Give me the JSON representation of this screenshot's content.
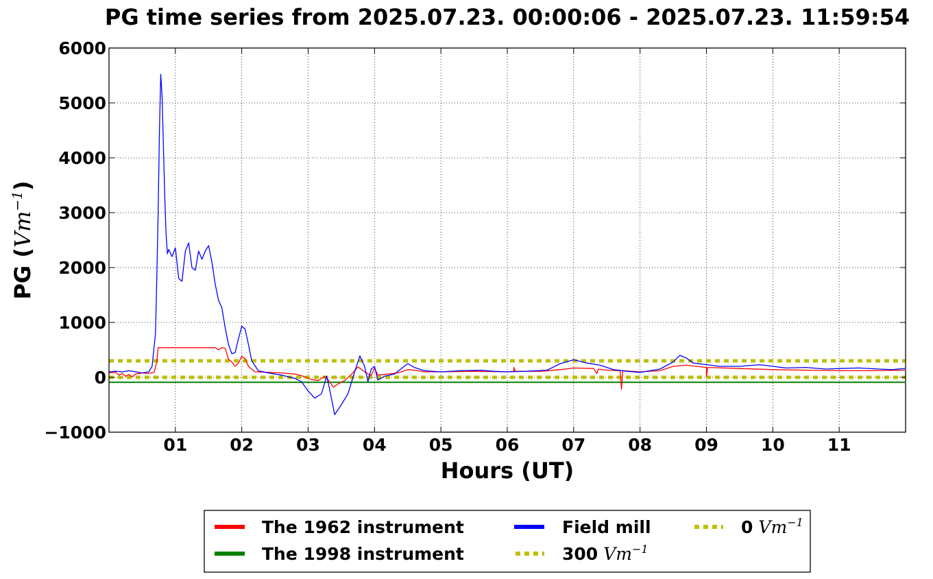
{
  "chart_data": {
    "type": "line",
    "title": "PG time series from 2025.07.23. 00:00:06 - 2025.07.23. 11:59:54",
    "xlabel": "Hours (UT)",
    "ylabel": "PG (",
    "ylabel_unit": "Vm",
    "ylabel_unit_exp": "−1",
    "ylabel_close": ")",
    "xlim": [
      0,
      12
    ],
    "ylim": [
      -1000,
      6000
    ],
    "grid": true,
    "x_ticks": [
      {
        "v": 1,
        "label": "01"
      },
      {
        "v": 2,
        "label": "02"
      },
      {
        "v": 3,
        "label": "03"
      },
      {
        "v": 4,
        "label": "04"
      },
      {
        "v": 5,
        "label": "05"
      },
      {
        "v": 6,
        "label": "06"
      },
      {
        "v": 7,
        "label": "07"
      },
      {
        "v": 8,
        "label": "08"
      },
      {
        "v": 9,
        "label": "09"
      },
      {
        "v": 10,
        "label": "10"
      },
      {
        "v": 11,
        "label": "11"
      }
    ],
    "y_ticks": [
      {
        "v": -1000,
        "label": "−1000"
      },
      {
        "v": 0,
        "label": "0"
      },
      {
        "v": 1000,
        "label": "1000"
      },
      {
        "v": 2000,
        "label": "2000"
      },
      {
        "v": 3000,
        "label": "3000"
      },
      {
        "v": 4000,
        "label": "4000"
      },
      {
        "v": 5000,
        "label": "5000"
      },
      {
        "v": 6000,
        "label": "6000"
      }
    ],
    "legend_position": "below the plot",
    "series": [
      {
        "name": "The 1962 instrument",
        "color": "#ff0000",
        "points": [
          [
            0,
            80
          ],
          [
            0.1,
            90
          ],
          [
            0.15,
            40
          ],
          [
            0.2,
            70
          ],
          [
            0.25,
            20
          ],
          [
            0.3,
            50
          ],
          [
            0.35,
            10
          ],
          [
            0.4,
            60
          ],
          [
            0.5,
            80
          ],
          [
            0.6,
            70
          ],
          [
            0.68,
            90
          ],
          [
            0.72,
            280
          ],
          [
            0.74,
            540
          ],
          [
            1.0,
            540
          ],
          [
            1.4,
            540
          ],
          [
            1.6,
            540
          ],
          [
            1.65,
            500
          ],
          [
            1.7,
            540
          ],
          [
            1.75,
            530
          ],
          [
            1.8,
            330
          ],
          [
            1.85,
            280
          ],
          [
            1.9,
            200
          ],
          [
            1.95,
            260
          ],
          [
            2.0,
            380
          ],
          [
            2.05,
            340
          ],
          [
            2.1,
            200
          ],
          [
            2.2,
            100
          ],
          [
            2.4,
            90
          ],
          [
            2.6,
            80
          ],
          [
            2.8,
            60
          ],
          [
            2.9,
            30
          ],
          [
            3.05,
            -40
          ],
          [
            3.15,
            -60
          ],
          [
            3.25,
            20
          ],
          [
            3.3,
            -40
          ],
          [
            3.38,
            -180
          ],
          [
            3.45,
            -120
          ],
          [
            3.55,
            -60
          ],
          [
            3.65,
            50
          ],
          [
            3.75,
            190
          ],
          [
            3.85,
            100
          ],
          [
            3.95,
            30
          ],
          [
            4.0,
            170
          ],
          [
            4.05,
            40
          ],
          [
            4.2,
            60
          ],
          [
            4.35,
            80
          ],
          [
            4.5,
            140
          ],
          [
            4.6,
            130
          ],
          [
            4.75,
            100
          ],
          [
            5.0,
            100
          ],
          [
            5.5,
            110
          ],
          [
            6.0,
            100
          ],
          [
            6.1,
            110
          ],
          [
            6.1,
            180
          ],
          [
            6.12,
            110
          ],
          [
            6.5,
            110
          ],
          [
            6.8,
            140
          ],
          [
            7.0,
            170
          ],
          [
            7.3,
            160
          ],
          [
            7.35,
            70
          ],
          [
            7.37,
            150
          ],
          [
            7.5,
            130
          ],
          [
            7.7,
            120
          ],
          [
            7.72,
            -220
          ],
          [
            7.74,
            120
          ],
          [
            8.0,
            100
          ],
          [
            8.3,
            120
          ],
          [
            8.5,
            200
          ],
          [
            8.7,
            220
          ],
          [
            9.0,
            180
          ],
          [
            9.0,
            10
          ],
          [
            9.02,
            180
          ],
          [
            9.5,
            160
          ],
          [
            10.0,
            140
          ],
          [
            10.5,
            130
          ],
          [
            11.0,
            120
          ],
          [
            11.5,
            120
          ],
          [
            11.99,
            130
          ]
        ]
      },
      {
        "name": "Field mill",
        "color": "#0000ff",
        "points": [
          [
            0,
            100
          ],
          [
            0.1,
            110
          ],
          [
            0.2,
            100
          ],
          [
            0.3,
            120
          ],
          [
            0.4,
            100
          ],
          [
            0.5,
            80
          ],
          [
            0.6,
            100
          ],
          [
            0.65,
            200
          ],
          [
            0.7,
            800
          ],
          [
            0.72,
            1800
          ],
          [
            0.74,
            3000
          ],
          [
            0.76,
            4500
          ],
          [
            0.78,
            5520
          ],
          [
            0.8,
            5100
          ],
          [
            0.82,
            4200
          ],
          [
            0.84,
            3300
          ],
          [
            0.86,
            2600
          ],
          [
            0.88,
            2250
          ],
          [
            0.9,
            2330
          ],
          [
            0.95,
            2200
          ],
          [
            1.0,
            2360
          ],
          [
            1.05,
            1800
          ],
          [
            1.1,
            1750
          ],
          [
            1.15,
            2300
          ],
          [
            1.2,
            2450
          ],
          [
            1.25,
            2000
          ],
          [
            1.3,
            1950
          ],
          [
            1.35,
            2300
          ],
          [
            1.4,
            2150
          ],
          [
            1.45,
            2300
          ],
          [
            1.5,
            2400
          ],
          [
            1.55,
            2100
          ],
          [
            1.6,
            1700
          ],
          [
            1.65,
            1400
          ],
          [
            1.7,
            1270
          ],
          [
            1.75,
            900
          ],
          [
            1.8,
            600
          ],
          [
            1.85,
            430
          ],
          [
            1.9,
            450
          ],
          [
            1.95,
            700
          ],
          [
            2.0,
            930
          ],
          [
            2.05,
            880
          ],
          [
            2.1,
            600
          ],
          [
            2.15,
            300
          ],
          [
            2.25,
            120
          ],
          [
            2.4,
            80
          ],
          [
            2.6,
            40
          ],
          [
            2.8,
            -20
          ],
          [
            2.9,
            -80
          ],
          [
            3.0,
            -250
          ],
          [
            3.1,
            -380
          ],
          [
            3.2,
            -300
          ],
          [
            3.25,
            -100
          ],
          [
            3.28,
            20
          ],
          [
            3.32,
            -200
          ],
          [
            3.4,
            -680
          ],
          [
            3.5,
            -500
          ],
          [
            3.6,
            -300
          ],
          [
            3.7,
            100
          ],
          [
            3.78,
            390
          ],
          [
            3.85,
            200
          ],
          [
            3.9,
            -80
          ],
          [
            3.95,
            150
          ],
          [
            4.0,
            200
          ],
          [
            4.05,
            -50
          ],
          [
            4.15,
            20
          ],
          [
            4.3,
            60
          ],
          [
            4.5,
            250
          ],
          [
            4.6,
            180
          ],
          [
            4.75,
            120
          ],
          [
            5.0,
            100
          ],
          [
            5.3,
            120
          ],
          [
            5.6,
            130
          ],
          [
            5.8,
            110
          ],
          [
            6.0,
            100
          ],
          [
            6.3,
            110
          ],
          [
            6.6,
            130
          ],
          [
            6.8,
            250
          ],
          [
            7.0,
            320
          ],
          [
            7.2,
            260
          ],
          [
            7.4,
            220
          ],
          [
            7.6,
            140
          ],
          [
            7.8,
            110
          ],
          [
            8.0,
            90
          ],
          [
            8.3,
            150
          ],
          [
            8.5,
            280
          ],
          [
            8.6,
            400
          ],
          [
            8.7,
            350
          ],
          [
            8.8,
            260
          ],
          [
            9.0,
            230
          ],
          [
            9.2,
            200
          ],
          [
            9.5,
            200
          ],
          [
            9.8,
            230
          ],
          [
            10.0,
            200
          ],
          [
            10.2,
            170
          ],
          [
            10.5,
            180
          ],
          [
            10.8,
            150
          ],
          [
            11.0,
            160
          ],
          [
            11.3,
            170
          ],
          [
            11.6,
            150
          ],
          [
            11.8,
            140
          ],
          [
            11.99,
            160
          ]
        ]
      },
      {
        "name": "The 1998 instrument",
        "color": "#008000",
        "points": [
          [
            0,
            -90
          ],
          [
            11.99,
            -90
          ]
        ]
      }
    ],
    "reference_lines": [
      {
        "name": "300",
        "unit": "Vm",
        "exp": "−1",
        "y": 300,
        "color": "#bfbf00"
      },
      {
        "name": "0",
        "unit": "Vm",
        "exp": "−1",
        "y": 0,
        "color": "#bfbf00"
      }
    ]
  }
}
